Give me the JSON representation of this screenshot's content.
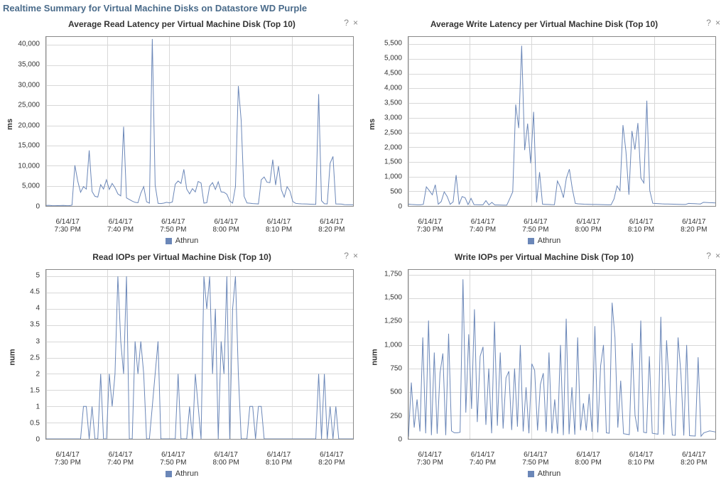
{
  "page_title": "Realtime Summary for Virtual Machine Disks on Datastore WD Purple",
  "line_color": "#6b87b8",
  "grid_color": "#d8d8d8",
  "axis_color": "#888888",
  "legend_label": "Athrun",
  "xticks": [
    {
      "date": "6/14/17",
      "time": "7:30 PM"
    },
    {
      "date": "6/14/17",
      "time": "7:40 PM"
    },
    {
      "date": "6/14/17",
      "time": "7:50 PM"
    },
    {
      "date": "6/14/17",
      "time": "8:00 PM"
    },
    {
      "date": "6/14/17",
      "time": "8:10 PM"
    },
    {
      "date": "6/14/17",
      "time": "8:20 PM"
    }
  ],
  "help_glyph": "?",
  "close_glyph": "×",
  "panels": [
    {
      "id": "read-latency",
      "title": "Average Read Latency per Virtual Machine Disk (Top 10)",
      "ylabel": "ms",
      "ymin": 0,
      "ymax": 42000,
      "ytick_step": 5000,
      "data": [
        120,
        150,
        80,
        60,
        90,
        110,
        140,
        95,
        70,
        200,
        10100,
        6200,
        3400,
        4800,
        4200,
        13800,
        3600,
        2400,
        2200,
        5300,
        4200,
        6500,
        4100,
        5600,
        4500,
        3000,
        2500,
        19700,
        2000,
        1600,
        1200,
        900,
        800,
        3200,
        4800,
        1050,
        700,
        41500,
        5200,
        650,
        600,
        700,
        900,
        750,
        1000,
        5400,
        6200,
        5600,
        9100,
        4200,
        3000,
        4300,
        3500,
        6100,
        5700,
        700,
        800,
        4900,
        5800,
        4100,
        6000,
        3500,
        3400,
        2900,
        1200,
        700,
        4800,
        29800,
        21200,
        2400,
        750,
        680,
        600,
        550,
        500,
        6500,
        7200,
        5900,
        5800,
        11500,
        5200,
        9900,
        4000,
        2200,
        4800,
        3700,
        1100,
        650,
        580,
        530,
        500,
        480,
        450,
        420,
        400,
        27800,
        1300,
        550,
        520,
        10600,
        12300,
        500,
        480,
        460,
        340,
        320,
        300,
        280
      ]
    },
    {
      "id": "write-latency",
      "title": "Average Write Latency per Virtual Machine Disk (Top 10)",
      "ylabel": "ms",
      "ymin": 0,
      "ymax": 5750,
      "ytick_step": 500,
      "data": [
        60,
        50,
        45,
        40,
        38,
        55,
        650,
        520,
        380,
        720,
        60,
        150,
        480,
        320,
        55,
        140,
        1050,
        50,
        320,
        280,
        48,
        260,
        45,
        42,
        40,
        38,
        180,
        36,
        120,
        34,
        32,
        30,
        28,
        26,
        250,
        480,
        3450,
        2650,
        5450,
        1900,
        2800,
        1450,
        3200,
        120,
        1150,
        60,
        55,
        50,
        45,
        42,
        850,
        640,
        280,
        950,
        1250,
        580,
        85,
        72,
        65,
        60,
        58,
        55,
        52,
        50,
        48,
        45,
        42,
        40,
        38,
        240,
        680,
        520,
        2750,
        1850,
        380,
        2550,
        1920,
        2820,
        950,
        780,
        3580,
        520,
        92,
        85,
        78,
        72,
        68,
        65,
        62,
        60,
        58,
        55,
        52,
        50,
        88,
        82,
        78,
        72,
        68,
        124,
        118,
        112,
        108,
        102
      ]
    },
    {
      "id": "read-iops",
      "title": "Read IOPs per Virtual Machine Disk (Top 10)",
      "ylabel": "num",
      "ymin": 0,
      "ymax": 5.2,
      "ytick_step": 0.5,
      "data": [
        0,
        0,
        0,
        0,
        0,
        0,
        0,
        0,
        0,
        0,
        0,
        0,
        0,
        1,
        1,
        0,
        1,
        0,
        0,
        2,
        0,
        0,
        2,
        1,
        2,
        5,
        3,
        2,
        5,
        0,
        0,
        3,
        2,
        3,
        2,
        0,
        0,
        1,
        2,
        3,
        0,
        0,
        0,
        0,
        0,
        0,
        2,
        0,
        0,
        0,
        1,
        0,
        2,
        1,
        0,
        5,
        4,
        5,
        2,
        4,
        0,
        3,
        2,
        5,
        0,
        4,
        5,
        2,
        0,
        0,
        0,
        1,
        1,
        0,
        1,
        1,
        0,
        0,
        0,
        0,
        0,
        0,
        0,
        0,
        0,
        0,
        0,
        0,
        0,
        0,
        0,
        0,
        0,
        0,
        0,
        2,
        0,
        2,
        0,
        1,
        0,
        1,
        0,
        0,
        0,
        0,
        0,
        0
      ]
    },
    {
      "id": "write-iops",
      "title": "Write IOPs per Virtual Machine Disk (Top 10)",
      "ylabel": "num",
      "ymin": 0,
      "ymax": 1800,
      "ytick_step": 250,
      "data": [
        25,
        600,
        120,
        420,
        80,
        1080,
        60,
        1260,
        40,
        920,
        55,
        700,
        910,
        40,
        1120,
        85,
        65,
        65,
        70,
        1700,
        280,
        1115,
        320,
        1380,
        180,
        880,
        980,
        150,
        750,
        60,
        1250,
        140,
        920,
        110,
        650,
        720,
        95,
        750,
        130,
        1000,
        80,
        550,
        60,
        800,
        730,
        90,
        580,
        700,
        75,
        920,
        60,
        420,
        55,
        1000,
        40,
        1280,
        50,
        550,
        45,
        1080,
        92,
        380,
        88,
        480,
        75,
        1200,
        70,
        780,
        1000,
        65,
        60,
        1450,
        1080,
        120,
        620,
        55,
        50,
        45,
        1020,
        250,
        75,
        1260,
        70,
        65,
        880,
        60,
        55,
        50,
        1300,
        45,
        1050,
        520,
        40,
        38,
        1080,
        690,
        36,
        1000,
        34,
        32,
        30,
        870,
        28,
        65,
        75,
        85,
        80,
        74
      ]
    }
  ]
}
